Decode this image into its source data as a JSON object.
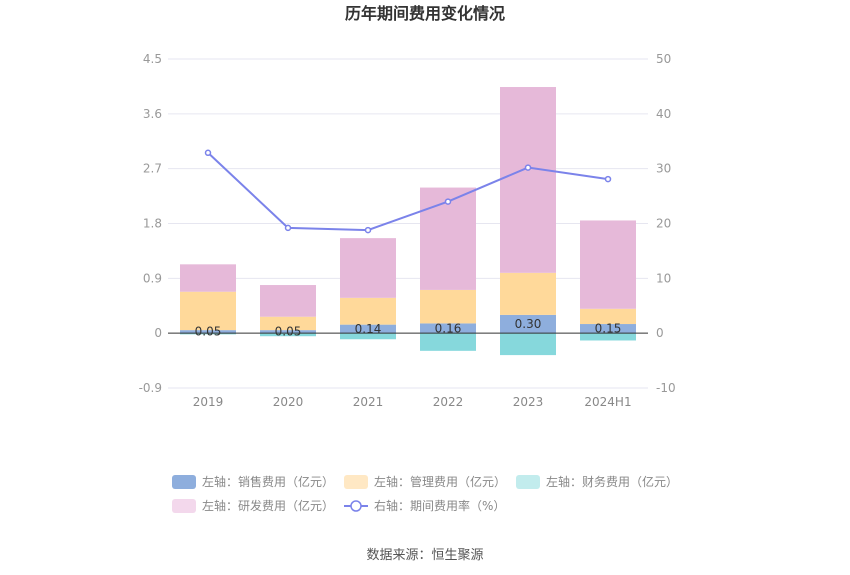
{
  "chart_data": {
    "type": "bar",
    "title": "历年期间费用变化情况",
    "categories": [
      "2019",
      "2020",
      "2021",
      "2022",
      "2023",
      "2024H1"
    ],
    "left_axis": {
      "ylim": [
        -0.9,
        4.5
      ],
      "ticks": [
        "4.5",
        "3.6",
        "2.7",
        "1.8",
        "0.9",
        "0",
        "-0.9"
      ],
      "tick_values": [
        4.5,
        3.6,
        2.7,
        1.8,
        0.9,
        0,
        -0.9
      ]
    },
    "right_axis": {
      "ylim": [
        -10,
        50
      ],
      "ticks": [
        "50",
        "40",
        "30",
        "20",
        "10",
        "0",
        "-10"
      ],
      "tick_values": [
        50,
        40,
        30,
        20,
        10,
        0,
        -10
      ]
    },
    "series": [
      {
        "name": "左轴：销售费用（亿元）",
        "type": "bar",
        "axis": "left",
        "color": "#8eaedd",
        "values": [
          0.05,
          0.05,
          0.14,
          0.16,
          0.3,
          0.15
        ],
        "labels": [
          "0.05",
          "0.05",
          "0.14",
          "0.16",
          "0.30",
          "0.15"
        ]
      },
      {
        "name": "左轴：管理费用（亿元）",
        "type": "bar",
        "axis": "left",
        "color": "#ffd99a",
        "values": [
          0.63,
          0.22,
          0.44,
          0.55,
          0.69,
          0.25
        ]
      },
      {
        "name": "左轴：财务费用（亿元）",
        "type": "bar",
        "axis": "left",
        "color": "#86d8dc",
        "values": [
          -0.02,
          -0.05,
          -0.1,
          -0.29,
          -0.36,
          -0.12
        ]
      },
      {
        "name": "左轴：研发费用（亿元）",
        "type": "bar",
        "axis": "left",
        "color": "#e6b9d9",
        "values": [
          0.45,
          0.52,
          0.98,
          1.68,
          3.05,
          1.45
        ]
      },
      {
        "name": "右轴：期间费用率（%）",
        "type": "line",
        "axis": "right",
        "color": "#7b83ea",
        "values": [
          32.9,
          19.2,
          18.8,
          24.0,
          30.2,
          28.1
        ]
      }
    ],
    "legend_placement": "bottom",
    "grid": true
  },
  "legend_colors": [
    "#8eaedd",
    "#ffe8c4",
    "#c2eced",
    "#f3d8ec"
  ],
  "source": "数据来源：恒生聚源"
}
